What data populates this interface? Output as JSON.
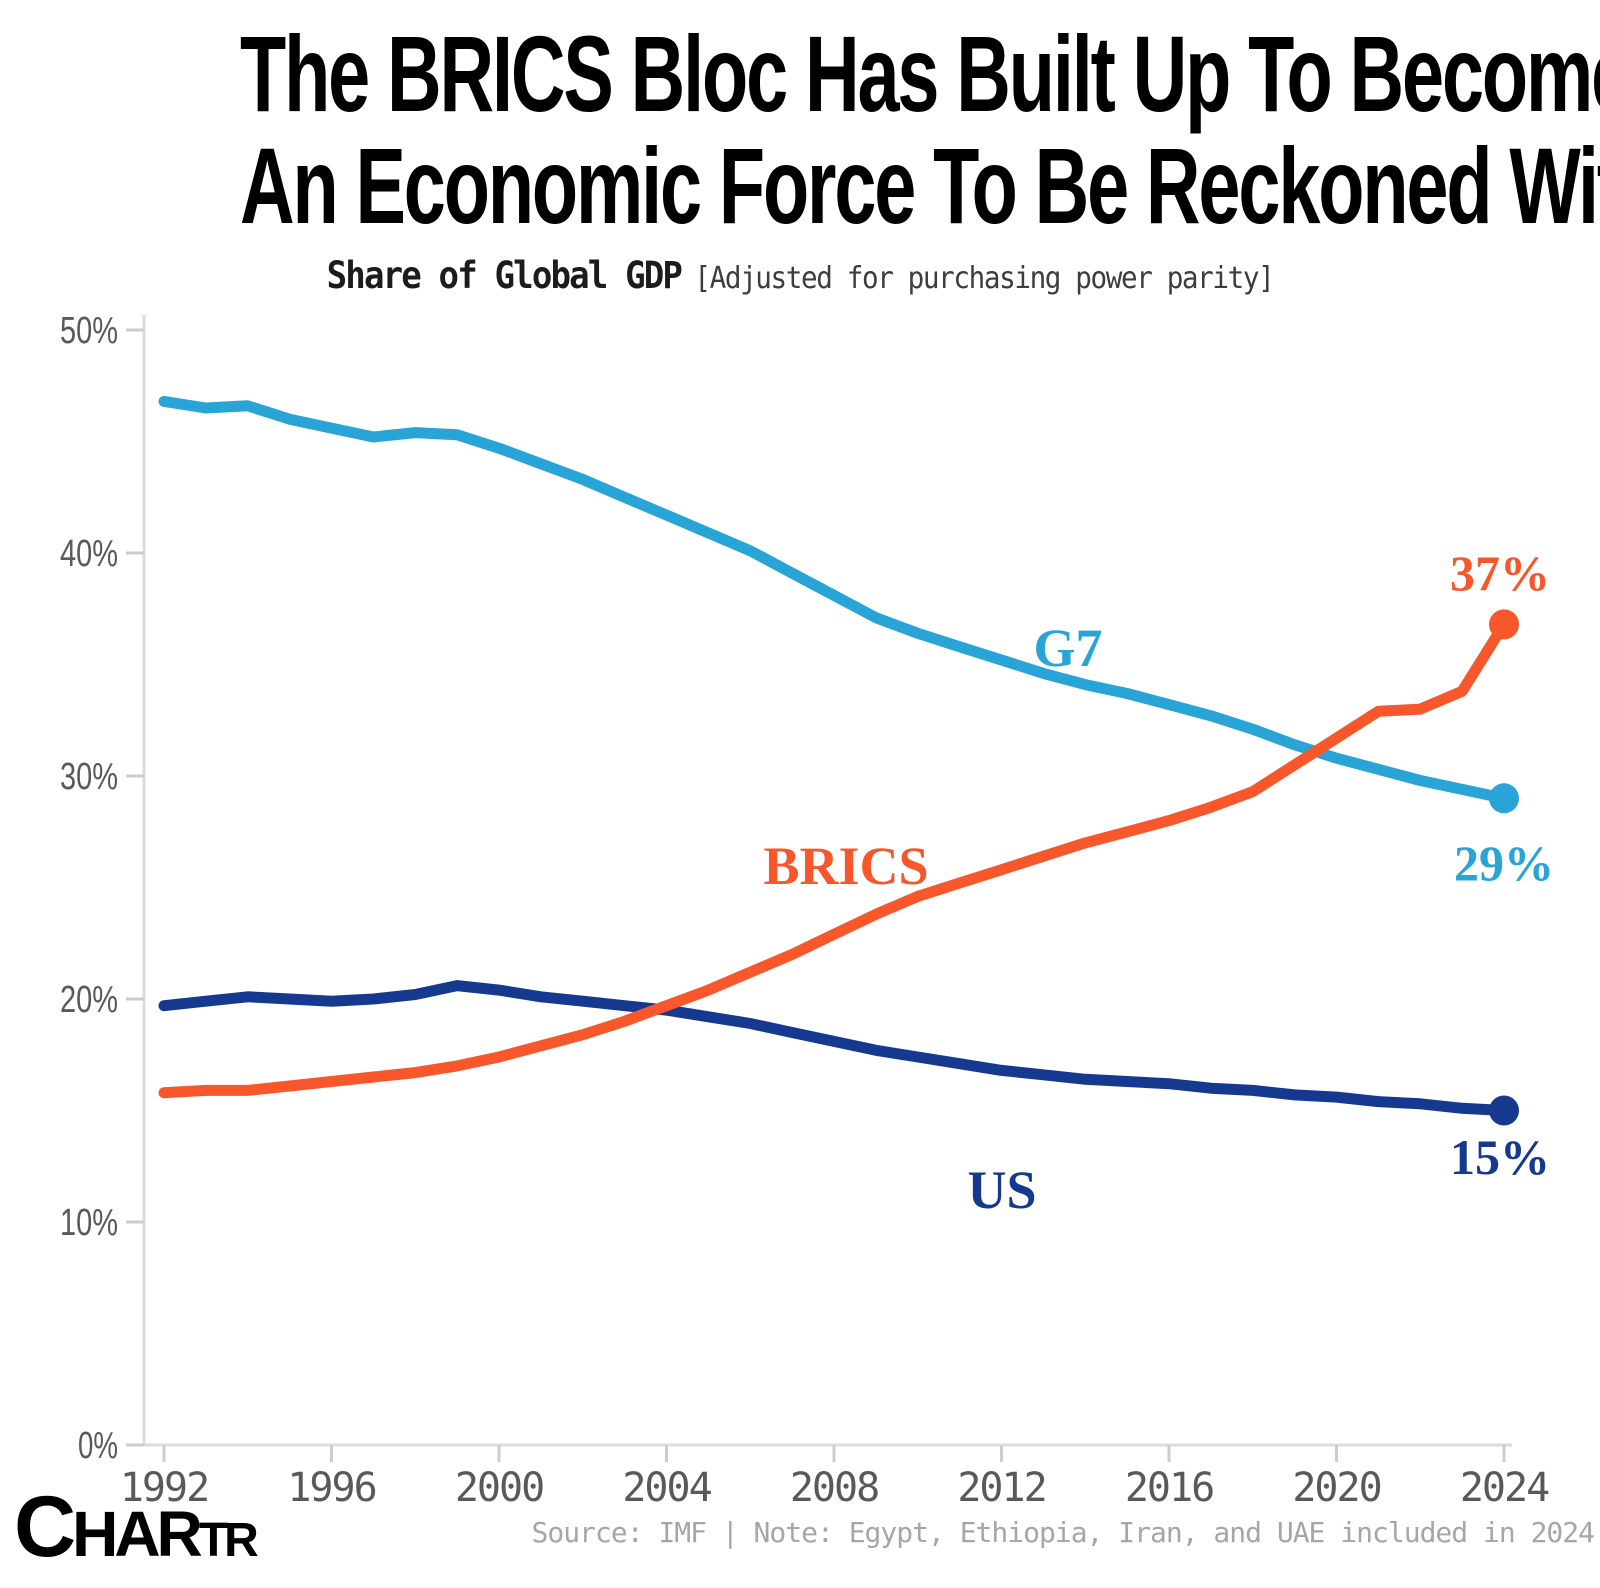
{
  "title": {
    "line1": "The BRICS Bloc Has Built Up To Become",
    "line2": "An Economic Force To Be Reckoned With"
  },
  "subtitle": {
    "main": "Share of Global GDP",
    "note": "[Adjusted for purchasing power parity]"
  },
  "footer": {
    "logo_seg1": "C",
    "logo_seg2": "HAR",
    "logo_seg3": "TR",
    "source": "Source: IMF | Note: Egypt, Ethiopia, Iran, and UAE included in 2024"
  },
  "colors": {
    "g7": "#29a4d6",
    "brics": "#f8572b",
    "us": "#14398f",
    "axis_line": "#dcdcdc",
    "tick_mark": "#cccccc",
    "axis_label": "#595959"
  },
  "chart_data": {
    "type": "line",
    "title": "Share of Global GDP",
    "subtitle": "[Adjusted for purchasing power parity]",
    "xlabel": "",
    "ylabel": "",
    "x": [
      1992,
      1993,
      1994,
      1995,
      1996,
      1997,
      1998,
      1999,
      2000,
      2001,
      2002,
      2003,
      2004,
      2005,
      2006,
      2007,
      2008,
      2009,
      2010,
      2011,
      2012,
      2013,
      2014,
      2015,
      2016,
      2017,
      2018,
      2019,
      2020,
      2021,
      2022,
      2023,
      2024
    ],
    "series": [
      {
        "name": "G7",
        "color": "#29a4d6",
        "end_label": "29%",
        "values": [
          46.8,
          46.5,
          46.6,
          46.0,
          45.6,
          45.2,
          45.4,
          45.3,
          44.7,
          44.0,
          43.3,
          42.5,
          41.7,
          40.9,
          40.1,
          39.1,
          38.1,
          37.1,
          36.4,
          35.8,
          35.2,
          34.6,
          34.1,
          33.7,
          33.2,
          32.7,
          32.1,
          31.4,
          30.8,
          30.3,
          29.8,
          29.4,
          29.0
        ]
      },
      {
        "name": "US",
        "color": "#14398f",
        "end_label": "15%",
        "values": [
          19.7,
          19.9,
          20.1,
          20.0,
          19.9,
          20.0,
          20.2,
          20.6,
          20.4,
          20.1,
          19.9,
          19.7,
          19.5,
          19.2,
          18.9,
          18.5,
          18.1,
          17.7,
          17.4,
          17.1,
          16.8,
          16.6,
          16.4,
          16.3,
          16.2,
          16.0,
          15.9,
          15.7,
          15.6,
          15.4,
          15.3,
          15.1,
          15.0
        ]
      },
      {
        "name": "BRICS",
        "color": "#f8572b",
        "end_label": "37%",
        "values": [
          15.8,
          15.9,
          15.9,
          16.1,
          16.3,
          16.5,
          16.7,
          17.0,
          17.4,
          17.9,
          18.4,
          19.0,
          19.7,
          20.4,
          21.2,
          22.0,
          22.9,
          23.8,
          24.6,
          25.2,
          25.8,
          26.4,
          27.0,
          27.5,
          28.0,
          28.6,
          29.3,
          30.5,
          31.7,
          32.9,
          33.0,
          33.8,
          36.8
        ]
      }
    ],
    "ylim": [
      0,
      50
    ],
    "yticks": [
      "0%",
      "10%",
      "20%",
      "30%",
      "40%",
      "50%"
    ],
    "xticks": [
      1992,
      1996,
      2000,
      2004,
      2008,
      2012,
      2016,
      2020,
      2024
    ],
    "grid": false,
    "legend": "inline-labels"
  }
}
